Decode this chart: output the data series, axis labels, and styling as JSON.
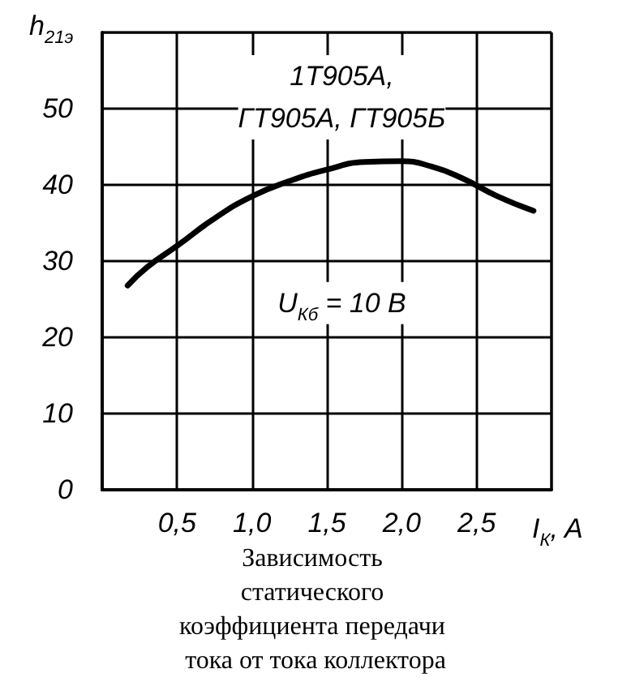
{
  "chart_data": {
    "type": "line",
    "title": "Зависимость статического коэффициента передачи тока от тока коллектора",
    "xlabel": "I$_{К}$, A",
    "ylabel": "h$_{21э}$",
    "annotations": [
      "1Т905А,\nГТ905А, ГТ905Б",
      "U$_{Кб}$ = 10 В"
    ],
    "x": [
      0.17,
      0.3,
      0.5,
      0.75,
      1.0,
      1.25,
      1.5,
      1.75,
      2.0,
      2.2,
      2.4,
      2.64,
      2.88
    ],
    "series": [
      {
        "color": "#000000",
        "values": [
          26.8,
          29.2,
          32.0,
          35.6,
          38.5,
          40.5,
          42.0,
          43.0,
          43.1,
          42.4,
          40.9,
          38.5,
          36.6
        ]
      }
    ],
    "xlim": [
      0,
      3
    ],
    "ylim": [
      0,
      60
    ],
    "xticks": [
      {
        "value": 0,
        "label": null
      },
      {
        "value": 0.5,
        "label": "0,5"
      },
      {
        "value": 1,
        "label": "1,0"
      },
      {
        "value": 1.5,
        "label": "1,5"
      },
      {
        "value": 2,
        "label": "2,0"
      },
      {
        "value": 2.5,
        "label": "2,5"
      },
      {
        "value": 3,
        "label": null
      }
    ],
    "yticks": [
      0,
      10,
      20,
      30,
      40,
      50,
      {
        "value": 60,
        "label": null
      }
    ],
    "grid": true,
    "marker": "none",
    "line_style": "solid"
  }
}
